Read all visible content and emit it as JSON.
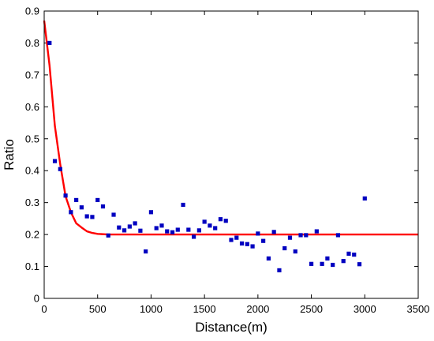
{
  "chart_data": {
    "type": "scatter",
    "title": "",
    "xlabel": "Distance(m)",
    "ylabel": "Ratio",
    "xlim": [
      0,
      3500
    ],
    "ylim": [
      0,
      0.9
    ],
    "xticks": [
      0,
      500,
      1000,
      1500,
      2000,
      2500,
      3000,
      3500
    ],
    "yticks": [
      0,
      0.1,
      0.2,
      0.3,
      0.4,
      0.5,
      0.6,
      0.7,
      0.8,
      0.9
    ],
    "xtick_labels": [
      "0",
      "500",
      "1000",
      "1500",
      "2000",
      "2500",
      "3000",
      "3500"
    ],
    "ytick_labels": [
      "0",
      "0.1",
      "0.2",
      "0.3",
      "0.4",
      "0.5",
      "0.6",
      "0.7",
      "0.8",
      "0.9"
    ],
    "grid": false,
    "series": [
      {
        "type": "scatter",
        "color": "#0000c0",
        "marker": "square",
        "x": [
          50,
          100,
          150,
          200,
          250,
          300,
          350,
          400,
          450,
          500,
          550,
          600,
          650,
          700,
          750,
          800,
          850,
          900,
          950,
          1000,
          1050,
          1100,
          1150,
          1200,
          1250,
          1300,
          1350,
          1400,
          1450,
          1500,
          1550,
          1600,
          1650,
          1700,
          1750,
          1800,
          1850,
          1900,
          1950,
          2000,
          2050,
          2100,
          2150,
          2200,
          2250,
          2300,
          2350,
          2400,
          2450,
          2500,
          2550,
          2600,
          2650,
          2700,
          2750,
          2800,
          2850,
          2900,
          2950,
          3000
        ],
        "y": [
          0.8,
          0.43,
          0.405,
          0.322,
          0.27,
          0.308,
          0.285,
          0.257,
          0.255,
          0.308,
          0.288,
          0.197,
          0.262,
          0.222,
          0.213,
          0.225,
          0.235,
          0.212,
          0.147,
          0.27,
          0.22,
          0.228,
          0.21,
          0.207,
          0.215,
          0.293,
          0.215,
          0.193,
          0.213,
          0.24,
          0.228,
          0.22,
          0.248,
          0.243,
          0.183,
          0.19,
          0.172,
          0.17,
          0.163,
          0.203,
          0.18,
          0.125,
          0.208,
          0.088,
          0.157,
          0.19,
          0.147,
          0.198,
          0.198,
          0.108,
          0.21,
          0.108,
          0.125,
          0.105,
          0.198,
          0.117,
          0.14,
          0.137,
          0.107,
          0.313
        ]
      },
      {
        "type": "line",
        "color": "#ff0000",
        "x": [
          0,
          50,
          100,
          150,
          200,
          250,
          300,
          350,
          400,
          450,
          500,
          600,
          800,
          1000,
          1500,
          2000,
          2500,
          3000,
          3500
        ],
        "y": [
          0.87,
          0.73,
          0.54,
          0.42,
          0.32,
          0.27,
          0.235,
          0.222,
          0.21,
          0.205,
          0.202,
          0.2,
          0.2,
          0.2,
          0.2,
          0.2,
          0.2,
          0.2,
          0.2
        ]
      }
    ]
  }
}
